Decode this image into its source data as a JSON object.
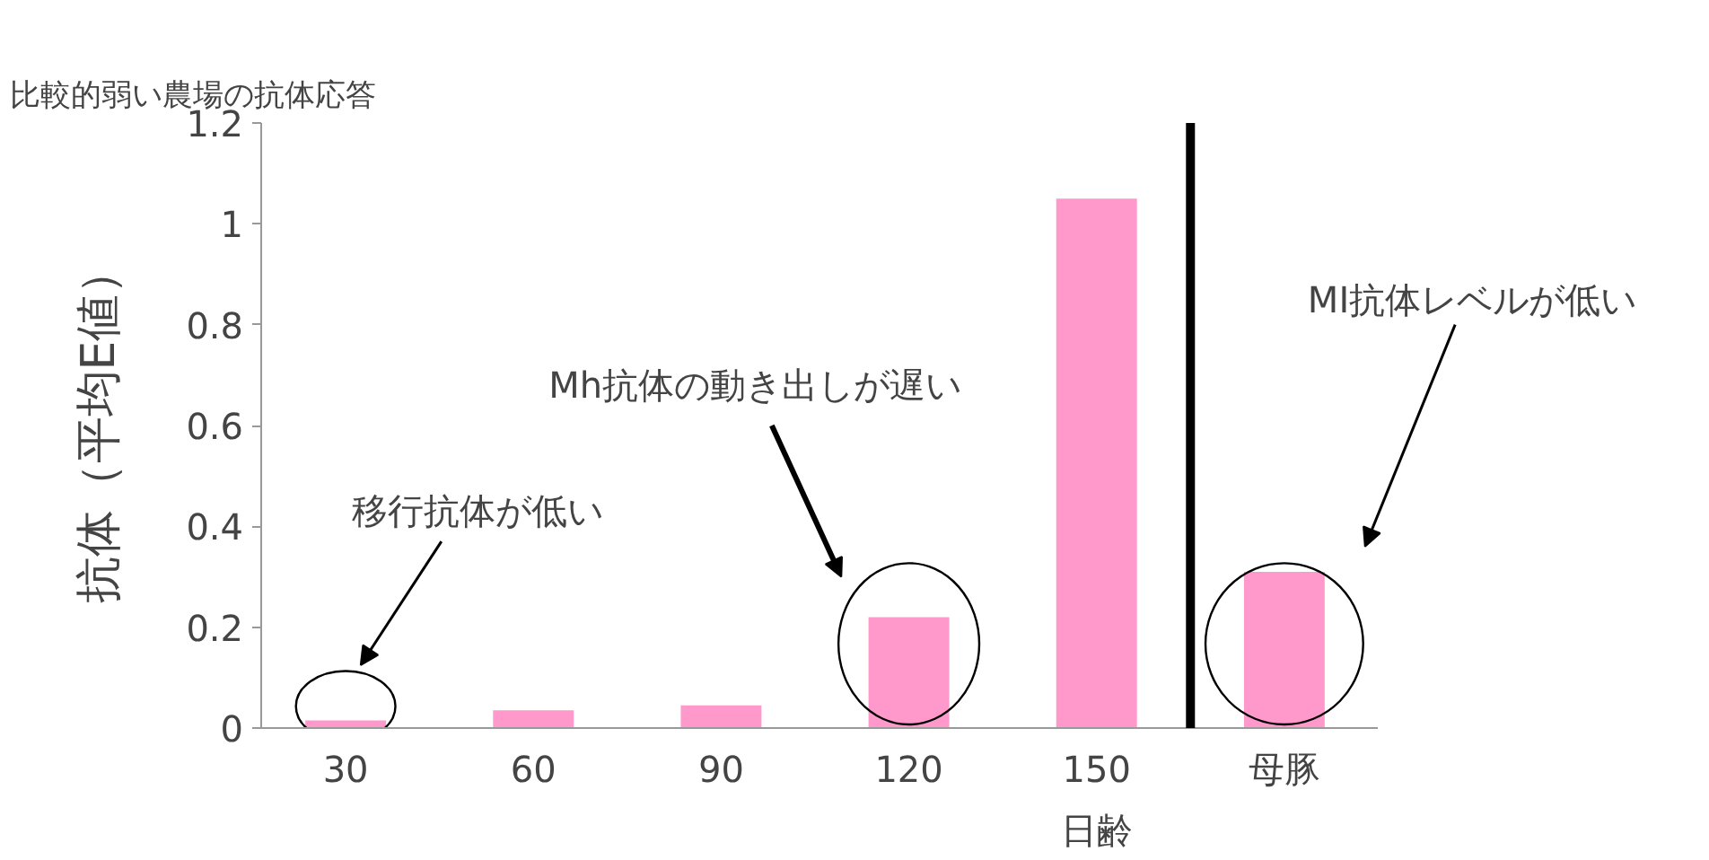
{
  "chart_data": {
    "type": "bar",
    "title": "比較的弱い農場の抗体応答",
    "xlabel": "日齢",
    "ylabel": "抗体（平均E値）",
    "categories": [
      "30",
      "60",
      "90",
      "120",
      "150",
      "母豚"
    ],
    "values": [
      0.015,
      0.035,
      0.045,
      0.22,
      1.05,
      0.31
    ],
    "color": "#ff99cc",
    "ylim": [
      0,
      1.2
    ],
    "yticks": [
      0,
      0.2,
      0.4,
      0.6,
      0.8,
      1,
      1.2
    ],
    "grid": false,
    "annotations": [
      "移行抗体が低い",
      "Mh抗体の動き出しが遅い",
      "MI抗体レベルが低い"
    ]
  }
}
